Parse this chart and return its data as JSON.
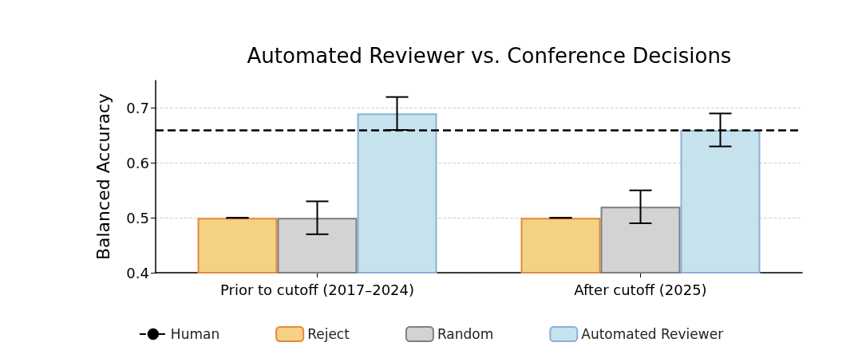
{
  "chart_data": {
    "type": "bar",
    "title": "Automated Reviewer vs. Conference Decisions",
    "ylabel": "Balanced Accuracy",
    "categories": [
      "Prior to cutoff (2017–2024)",
      "After cutoff (2025)"
    ],
    "series": [
      {
        "name": "Reject",
        "color": "#f3d285",
        "values": [
          0.5,
          0.5
        ],
        "errors": [
          0,
          0
        ]
      },
      {
        "name": "Random",
        "color": "#d3d3d3",
        "values": [
          0.5,
          0.52
        ],
        "errors": [
          0.03,
          0.03
        ]
      },
      {
        "name": "Automated Reviewer",
        "color": "#c6e2ec",
        "values": [
          0.69,
          0.66
        ],
        "errors": [
          0.03,
          0.03
        ]
      }
    ],
    "ref_lines": [
      {
        "axis": "y",
        "value": 0.66,
        "label": "Human",
        "color": "#000000",
        "line_style": "dashed"
      }
    ],
    "ylim": [
      0.4,
      0.75
    ],
    "yticks": [
      0.4,
      0.5,
      0.6,
      0.7
    ],
    "grid": "y",
    "legend": "bottom"
  }
}
